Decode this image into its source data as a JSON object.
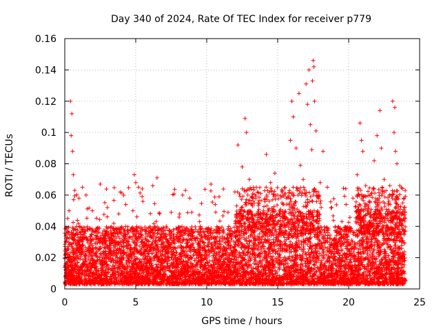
{
  "chart_data": {
    "type": "scatter",
    "title": "Day 340 of 2024, Rate Of TEC Index for receiver p779",
    "xlabel": "GPS time / hours",
    "ylabel": "ROTI / TECUs",
    "xlim": [
      0,
      25
    ],
    "ylim": [
      0,
      0.16
    ],
    "xticks": [
      0,
      5,
      10,
      15,
      20,
      25
    ],
    "xtick_labels": [
      "0",
      "5",
      "10",
      "15",
      "20",
      "25"
    ],
    "yticks": [
      0,
      0.02,
      0.04,
      0.06,
      0.08,
      0.1,
      0.12,
      0.14,
      0.16
    ],
    "ytick_labels": [
      "0",
      "0.02",
      "0.04",
      "0.06",
      "0.08",
      "0.1",
      "0.12",
      "0.14",
      "0.16"
    ],
    "grid": true,
    "marker": "+",
    "color": "#ff0000",
    "series": [
      {
        "name": "ROTI",
        "points": [
          [
            0.1,
            0.035
          ],
          [
            0.2,
            0.045
          ],
          [
            0.3,
            0.05
          ],
          [
            0.4,
            0.12
          ],
          [
            0.45,
            0.098
          ],
          [
            0.5,
            0.112
          ],
          [
            0.55,
            0.088
          ],
          [
            0.6,
            0.073
          ],
          [
            0.7,
            0.063
          ],
          [
            1.0,
            0.058
          ],
          [
            1.5,
            0.06
          ],
          [
            2.5,
            0.067
          ],
          [
            3.0,
            0.052
          ],
          [
            3.8,
            0.048
          ],
          [
            4.3,
            0.054
          ],
          [
            4.8,
            0.05
          ],
          [
            4.9,
            0.073
          ],
          [
            5.0,
            0.068
          ],
          [
            5.2,
            0.065
          ],
          [
            5.5,
            0.056
          ],
          [
            6.2,
            0.066
          ],
          [
            6.5,
            0.071
          ],
          [
            7.5,
            0.049
          ],
          [
            8.3,
            0.06
          ],
          [
            8.5,
            0.063
          ],
          [
            8.8,
            0.058
          ],
          [
            9.5,
            0.043
          ],
          [
            10.3,
            0.067
          ],
          [
            10.6,
            0.054
          ],
          [
            11.5,
            0.049
          ],
          [
            12.2,
            0.092
          ],
          [
            12.5,
            0.078
          ],
          [
            12.7,
            0.109
          ],
          [
            12.8,
            0.1
          ],
          [
            13.0,
            0.07
          ],
          [
            13.3,
            0.065
          ],
          [
            13.8,
            0.061
          ],
          [
            14.2,
            0.086
          ],
          [
            14.5,
            0.068
          ],
          [
            14.8,
            0.074
          ],
          [
            15.0,
            0.06
          ],
          [
            15.3,
            0.055
          ],
          [
            15.6,
            0.058
          ],
          [
            15.9,
            0.095
          ],
          [
            16.0,
            0.12
          ],
          [
            16.1,
            0.11
          ],
          [
            16.3,
            0.09
          ],
          [
            16.5,
            0.125
          ],
          [
            16.6,
            0.079
          ],
          [
            16.8,
            0.07
          ],
          [
            17.0,
            0.131
          ],
          [
            17.1,
            0.118
          ],
          [
            17.2,
            0.14
          ],
          [
            17.3,
            0.105
          ],
          [
            17.4,
            0.089
          ],
          [
            17.45,
            0.133
          ],
          [
            17.5,
            0.146
          ],
          [
            17.55,
            0.142
          ],
          [
            17.6,
            0.12
          ],
          [
            17.7,
            0.101
          ],
          [
            18.0,
            0.068
          ],
          [
            18.2,
            0.088
          ],
          [
            18.5,
            0.065
          ],
          [
            18.8,
            0.052
          ],
          [
            19.8,
            0.064
          ],
          [
            20.3,
            0.058
          ],
          [
            20.6,
            0.073
          ],
          [
            20.8,
            0.106
          ],
          [
            20.9,
            0.095
          ],
          [
            21.0,
            0.088
          ],
          [
            21.2,
            0.066
          ],
          [
            21.5,
            0.06
          ],
          [
            21.8,
            0.082
          ],
          [
            22.0,
            0.098
          ],
          [
            22.2,
            0.114
          ],
          [
            22.3,
            0.09
          ],
          [
            22.5,
            0.07
          ],
          [
            22.9,
            0.066
          ],
          [
            23.1,
            0.12
          ],
          [
            23.2,
            0.1
          ],
          [
            23.25,
            0.116
          ],
          [
            23.3,
            0.088
          ],
          [
            23.4,
            0.08
          ],
          [
            23.6,
            0.066
          ],
          [
            23.8,
            0.055
          ],
          [
            23.9,
            0.058
          ]
        ],
        "dense_band": {
          "x": [
            0,
            24
          ],
          "y_min": 0.003,
          "y_typical_max": 0.04
        }
      }
    ]
  }
}
